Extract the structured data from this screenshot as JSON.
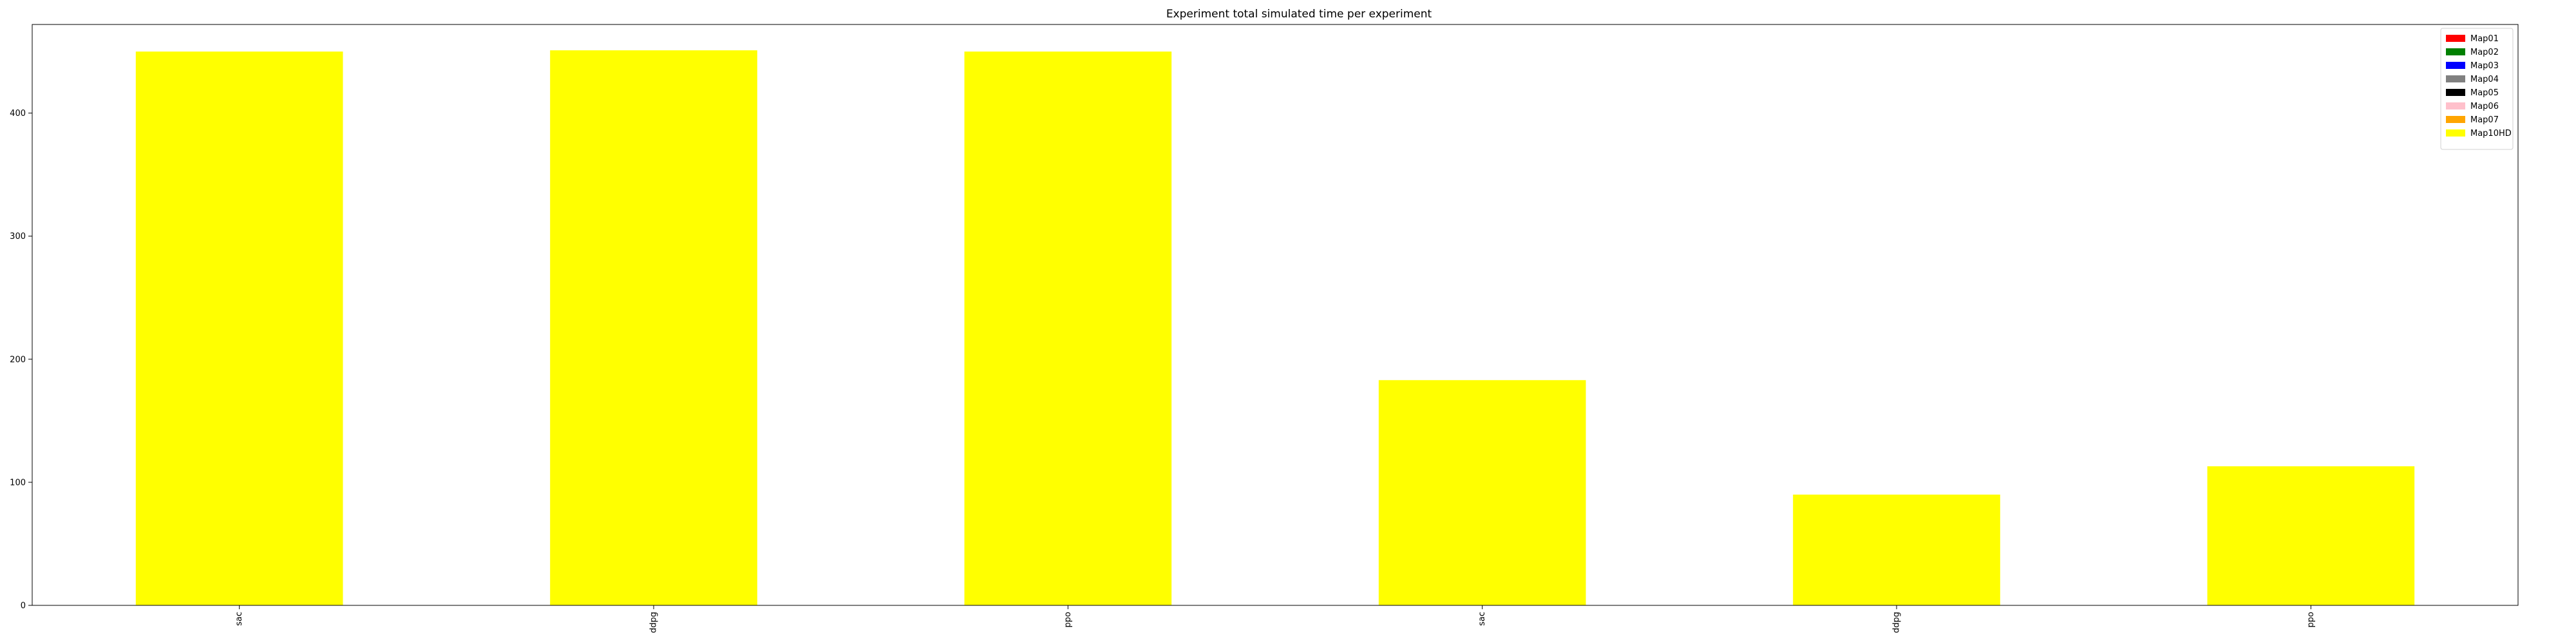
{
  "chart_data": {
    "type": "bar",
    "stacked": true,
    "title": "Experiment total simulated time per experiment",
    "xlabel": "",
    "ylabel": "",
    "categories": [
      "sac",
      "ddpg",
      "ppo",
      "sac",
      "ddpg",
      "ppo"
    ],
    "ylim": [
      0,
      472
    ],
    "yticks": [
      0,
      100,
      200,
      300,
      400
    ],
    "grid": false,
    "legend_position": "top-right",
    "series": [
      {
        "name": "Map01",
        "color": "#ff0000",
        "values": [
          0,
          0,
          0,
          0,
          0,
          0
        ]
      },
      {
        "name": "Map02",
        "color": "#008000",
        "values": [
          0,
          0,
          0,
          0,
          0,
          0
        ]
      },
      {
        "name": "Map03",
        "color": "#0000ff",
        "values": [
          0,
          0,
          0,
          0,
          0,
          0
        ]
      },
      {
        "name": "Map04",
        "color": "#808080",
        "values": [
          0,
          0,
          0,
          0,
          0,
          0
        ]
      },
      {
        "name": "Map05",
        "color": "#000000",
        "values": [
          0,
          0,
          0,
          0,
          0,
          0
        ]
      },
      {
        "name": "Map06",
        "color": "#ffc0cb",
        "values": [
          0,
          0,
          0,
          0,
          0,
          0
        ]
      },
      {
        "name": "Map07",
        "color": "#ffa500",
        "values": [
          0,
          0,
          0,
          0,
          0,
          0
        ]
      },
      {
        "name": "Map10HD",
        "color": "#ffff00",
        "values": [
          450,
          451,
          450,
          183,
          90,
          113
        ]
      }
    ]
  }
}
